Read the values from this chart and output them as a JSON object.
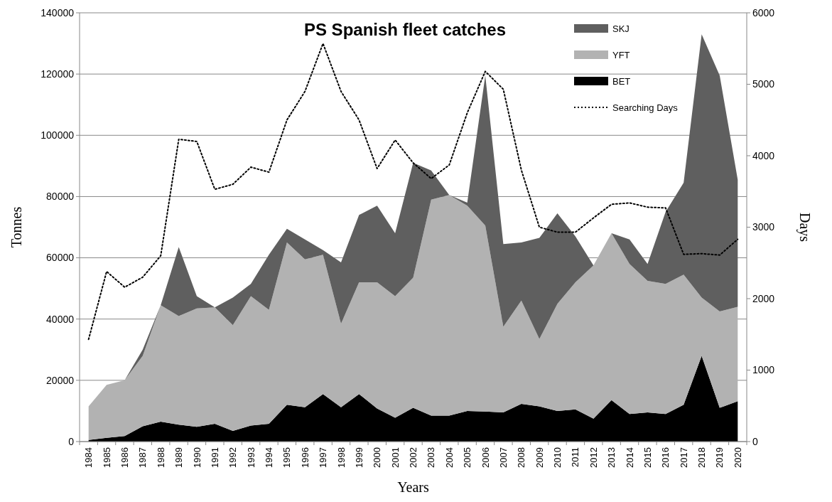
{
  "chart_data": {
    "type": "area",
    "title": "PS Spanish fleet catches",
    "xlabel": "Years",
    "ylabel": "Tonnes",
    "y2label": "Days",
    "categories": [
      "1984",
      "1985",
      "1986",
      "1987",
      "1988",
      "1989",
      "1990",
      "1991",
      "1992",
      "1993",
      "1994",
      "1995",
      "1996",
      "1997",
      "1998",
      "1999",
      "2000",
      "2001",
      "2002",
      "2003",
      "2004",
      "2005",
      "2006",
      "2007",
      "2008",
      "2009",
      "2010",
      "2011",
      "2012",
      "2013",
      "2014",
      "2015",
      "2016",
      "2017",
      "2018",
      "2019",
      "2020"
    ],
    "stacked": true,
    "series": [
      {
        "name": "BET",
        "color": "#000000",
        "values": [
          500,
          1200,
          1800,
          5000,
          6500,
          5500,
          4800,
          5800,
          3500,
          5200,
          5800,
          12000,
          11200,
          15500,
          11200,
          15500,
          10800,
          7800,
          11000,
          8500,
          8500,
          10000,
          9800,
          9500,
          12300,
          11500,
          10000,
          10500,
          7500,
          13500,
          9000,
          9500,
          9000,
          12000,
          28000,
          11000,
          13200
        ]
      },
      {
        "name": "YFT",
        "color": "#b2b2b2",
        "values": [
          11000,
          17300,
          18200,
          23000,
          38000,
          35500,
          38700,
          38000,
          34500,
          42300,
          37200,
          53000,
          48300,
          45500,
          27300,
          36500,
          41200,
          39700,
          42500,
          70500,
          72000,
          67000,
          60700,
          28000,
          33700,
          22000,
          35000,
          41500,
          50000,
          54500,
          49000,
          43000,
          42500,
          42500,
          19000,
          31500,
          30800
        ]
      },
      {
        "name": "SKJ",
        "color": "#5f5f5f",
        "values": [
          0,
          0,
          0,
          2000,
          0,
          22500,
          4000,
          0,
          9000,
          4000,
          18000,
          4500,
          6500,
          1500,
          20000,
          22000,
          25000,
          20500,
          37500,
          9500,
          0,
          1000,
          49000,
          27000,
          19000,
          33000,
          29500,
          15000,
          0,
          0,
          8000,
          5500,
          23500,
          30000,
          86000,
          77000,
          41500
        ]
      },
      {
        "name": "Searching Days",
        "type": "line",
        "axis": "y2",
        "color": "#000000",
        "line_style": "dotted",
        "values": [
          1430,
          2380,
          2160,
          2300,
          2600,
          4230,
          4200,
          3530,
          3600,
          3840,
          3770,
          4500,
          4900,
          5570,
          4900,
          4500,
          3820,
          4220,
          3900,
          3680,
          3870,
          4600,
          5180,
          4930,
          3800,
          3000,
          2930,
          2930,
          3130,
          3320,
          3340,
          3280,
          3270,
          2620,
          2630,
          2610,
          2830
        ]
      }
    ],
    "ylim": [
      0,
      140000
    ],
    "yticks": [
      0,
      20000,
      40000,
      60000,
      80000,
      100000,
      120000,
      140000
    ],
    "y2lim": [
      0,
      6000
    ],
    "y2ticks": [
      0,
      1000,
      2000,
      3000,
      4000,
      5000,
      6000
    ],
    "grid": "y",
    "legend": "top right"
  }
}
